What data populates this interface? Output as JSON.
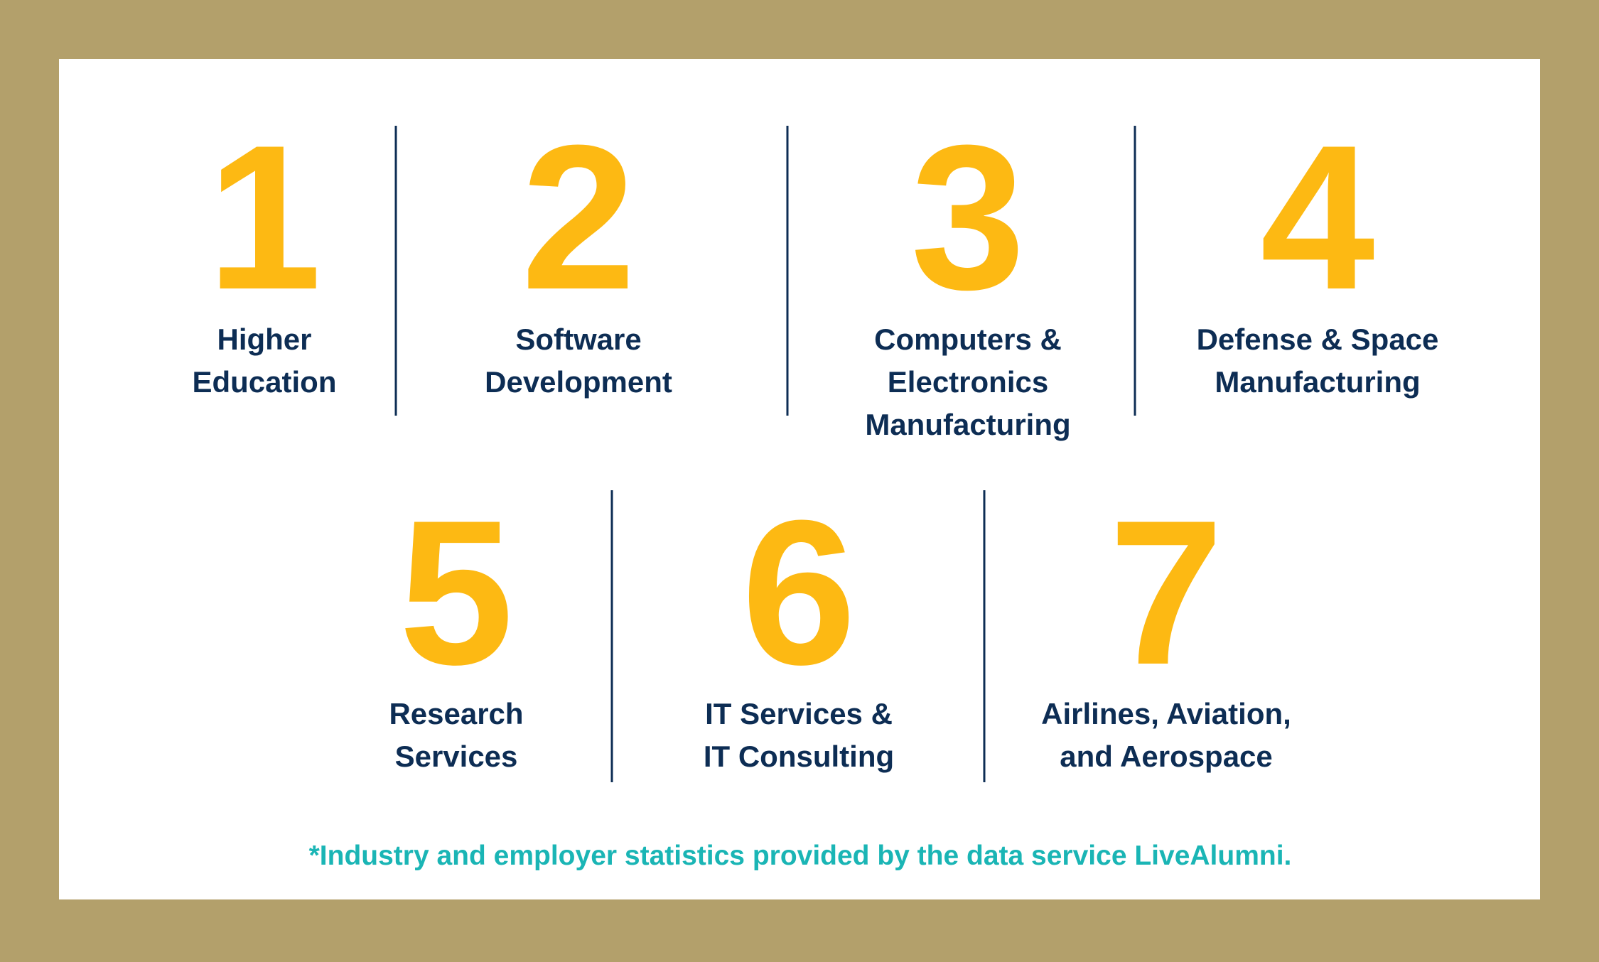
{
  "items": [
    {
      "rank": 1,
      "label": [
        "Higher",
        "Education"
      ]
    },
    {
      "rank": 2,
      "label": [
        "Software",
        "Development"
      ]
    },
    {
      "rank": 3,
      "label": [
        "Computers &",
        "Electronics",
        "Manufacturing"
      ]
    },
    {
      "rank": 4,
      "label": [
        "Defense & Space",
        "Manufacturing"
      ]
    },
    {
      "rank": 5,
      "label": [
        "Research",
        "Services"
      ]
    },
    {
      "rank": 6,
      "label": [
        "IT Services &",
        "IT Consulting"
      ]
    },
    {
      "rank": 7,
      "label": [
        "Airlines, Aviation,",
        "and Aerospace"
      ]
    }
  ],
  "footnote": "*Industry and employer statistics provided by the data service LiveAlumni."
}
